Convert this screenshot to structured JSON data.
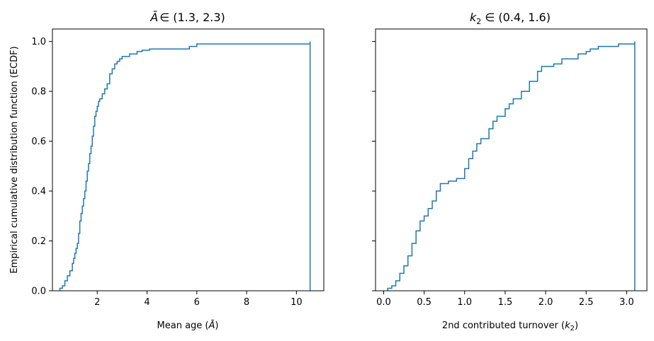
{
  "figure": {
    "ylabel": "Empirical cumulative distribution function (ECDF)",
    "line_color": "#1f77b4"
  },
  "chart_data": [
    {
      "type": "line",
      "step": true,
      "title": "Ā ∈ (1.3, 2.3)",
      "title_parts": {
        "var": "Ā",
        "range": "∈  (1.3, 2.3)"
      },
      "xlabel": "Mean age (Ā)",
      "xlabel_parts": {
        "text": "Mean age (",
        "var": "Ā",
        "close": ")"
      },
      "ylabel": "Empirical cumulative distribution function (ECDF)",
      "xlim": [
        0.2,
        11.1
      ],
      "ylim": [
        0,
        1.05
      ],
      "xticks": [
        2,
        4,
        6,
        8,
        10
      ],
      "yticks": [
        0.0,
        0.2,
        0.4,
        0.6,
        0.8,
        1.0
      ],
      "series": [
        {
          "x": [
            0.5,
            0.6,
            0.7,
            0.8,
            0.9,
            1.0,
            1.05,
            1.1,
            1.15,
            1.2,
            1.25,
            1.3,
            1.35,
            1.4,
            1.45,
            1.5,
            1.55,
            1.6,
            1.65,
            1.7,
            1.75,
            1.8,
            1.85,
            1.9,
            1.95,
            2.0,
            2.05,
            2.1,
            2.2,
            2.3,
            2.4,
            2.5,
            2.6,
            2.7,
            2.8,
            2.9,
            3.0,
            3.3,
            3.6,
            3.8,
            4.1,
            5.7,
            6.0,
            10.55
          ],
          "y": [
            0.01,
            0.02,
            0.04,
            0.06,
            0.08,
            0.11,
            0.13,
            0.15,
            0.17,
            0.19,
            0.23,
            0.28,
            0.31,
            0.34,
            0.37,
            0.4,
            0.44,
            0.48,
            0.51,
            0.55,
            0.58,
            0.62,
            0.66,
            0.7,
            0.72,
            0.74,
            0.76,
            0.77,
            0.79,
            0.81,
            0.83,
            0.87,
            0.89,
            0.91,
            0.92,
            0.93,
            0.94,
            0.95,
            0.96,
            0.965,
            0.97,
            0.98,
            0.99,
            1.0
          ]
        }
      ]
    },
    {
      "type": "line",
      "step": true,
      "title": "k₂ ∈ (0.4, 1.6)",
      "title_parts": {
        "var": "k",
        "sub": "2",
        "range": " ∈  (0.4, 1.6)"
      },
      "xlabel": "2nd contributed turnover (k₂)",
      "xlabel_parts": {
        "text": "2nd contributed turnover (",
        "var": "k",
        "sub": "2",
        "close": ")"
      },
      "xlim": [
        -0.1,
        3.25
      ],
      "ylim": [
        0,
        1.05
      ],
      "xticks": [
        0.0,
        0.5,
        1.0,
        1.5,
        2.0,
        2.5,
        3.0
      ],
      "xtick_labels": [
        "0.0",
        "0.5",
        "1.0",
        "1.5",
        "2.0",
        "2.5",
        "3.0"
      ],
      "yticks": [
        0.0,
        0.2,
        0.4,
        0.6,
        0.8,
        1.0
      ],
      "series": [
        {
          "x": [
            0.05,
            0.1,
            0.15,
            0.2,
            0.25,
            0.3,
            0.35,
            0.4,
            0.45,
            0.5,
            0.55,
            0.6,
            0.65,
            0.7,
            0.8,
            0.9,
            1.0,
            1.05,
            1.1,
            1.15,
            1.2,
            1.3,
            1.35,
            1.4,
            1.5,
            1.55,
            1.6,
            1.7,
            1.8,
            1.9,
            1.95,
            2.1,
            2.2,
            2.25,
            2.4,
            2.5,
            2.55,
            2.65,
            2.9,
            3.1
          ],
          "y": [
            0.01,
            0.02,
            0.04,
            0.07,
            0.1,
            0.14,
            0.19,
            0.24,
            0.28,
            0.3,
            0.33,
            0.36,
            0.4,
            0.43,
            0.44,
            0.45,
            0.49,
            0.53,
            0.56,
            0.59,
            0.61,
            0.65,
            0.68,
            0.7,
            0.73,
            0.75,
            0.77,
            0.8,
            0.84,
            0.88,
            0.9,
            0.91,
            0.93,
            0.93,
            0.95,
            0.96,
            0.97,
            0.98,
            0.99,
            1.0
          ]
        }
      ]
    }
  ]
}
